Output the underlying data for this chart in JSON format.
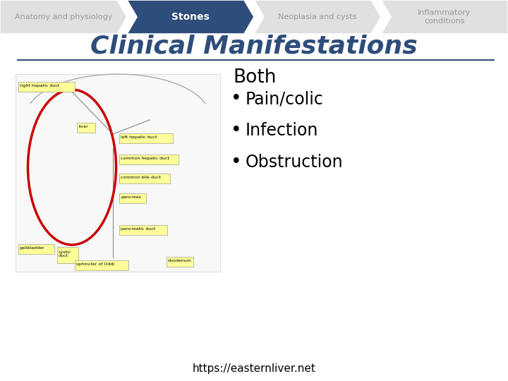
{
  "nav_items": [
    {
      "label": "Anatomy and physiology",
      "active": false
    },
    {
      "label": "Stones",
      "active": true
    },
    {
      "label": "Neoplasia and cysts",
      "active": false
    },
    {
      "label": "Inflammatory\nconditions",
      "active": false
    }
  ],
  "nav_active_color": "#2E4D7B",
  "nav_inactive_color": "#E0E0E0",
  "nav_active_text_color": "#FFFFFF",
  "nav_inactive_text_color": "#999999",
  "title": "Clinical Manifestations",
  "title_color": "#2E4D7B",
  "title_fontsize": 26,
  "separator_color": "#2E4D7B",
  "section_header": "Both",
  "bullet_items": [
    "Pain/colic",
    "Infection",
    "Obstruction"
  ],
  "bullet_fontsize": 17,
  "header_fontsize": 19,
  "footer_text": "https://easternliver.net",
  "footer_fontsize": 11,
  "bg_color": "#FFFFFF"
}
